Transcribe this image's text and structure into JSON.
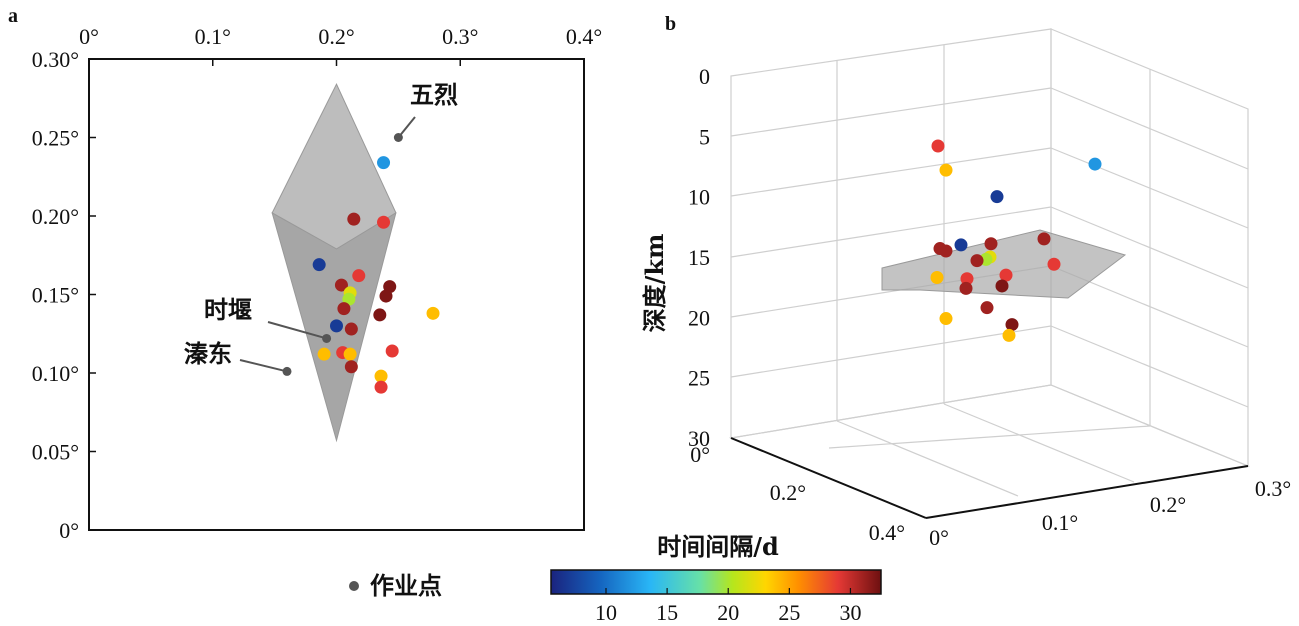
{
  "chart_data": [
    {
      "panel": "a",
      "type": "scatter",
      "x_ticks": [
        "0°",
        "0.1°",
        "0.2°",
        "0.3°",
        "0.4°"
      ],
      "y_ticks": [
        "0°",
        "0.05°",
        "0.10°",
        "0.15°",
        "0.20°",
        "0.25°",
        "0.30°"
      ],
      "xlim": [
        0,
        0.4
      ],
      "ylim": [
        0,
        0.3
      ],
      "sites": [
        {
          "name": "五烈",
          "x": 0.25,
          "y": 0.25
        },
        {
          "name": "时堰",
          "x": 0.192,
          "y": 0.122
        },
        {
          "name": "溱东",
          "x": 0.16,
          "y": 0.101
        }
      ],
      "hull": [
        [
          0.2,
          0.179
        ],
        [
          0.248,
          0.202
        ],
        [
          0.2,
          0.284
        ],
        [
          0.148,
          0.202
        ]
      ],
      "hull_lower": [
        [
          0.148,
          0.202
        ],
        [
          0.248,
          0.202
        ],
        [
          0.2,
          0.057
        ]
      ],
      "points": [
        {
          "x": 0.238,
          "y": 0.234,
          "d": 12
        },
        {
          "x": 0.214,
          "y": 0.198,
          "d": 31
        },
        {
          "x": 0.238,
          "y": 0.196,
          "d": 29
        },
        {
          "x": 0.186,
          "y": 0.169,
          "d": 7
        },
        {
          "x": 0.218,
          "y": 0.162,
          "d": 29
        },
        {
          "x": 0.204,
          "y": 0.156,
          "d": 31
        },
        {
          "x": 0.243,
          "y": 0.155,
          "d": 32
        },
        {
          "x": 0.211,
          "y": 0.151,
          "d": 22
        },
        {
          "x": 0.21,
          "y": 0.147,
          "d": 20
        },
        {
          "x": 0.24,
          "y": 0.149,
          "d": 32
        },
        {
          "x": 0.206,
          "y": 0.141,
          "d": 31
        },
        {
          "x": 0.235,
          "y": 0.137,
          "d": 32
        },
        {
          "x": 0.278,
          "y": 0.138,
          "d": 24
        },
        {
          "x": 0.2,
          "y": 0.13,
          "d": 7
        },
        {
          "x": 0.212,
          "y": 0.128,
          "d": 31
        },
        {
          "x": 0.245,
          "y": 0.114,
          "d": 29
        },
        {
          "x": 0.19,
          "y": 0.112,
          "d": 24
        },
        {
          "x": 0.205,
          "y": 0.113,
          "d": 29
        },
        {
          "x": 0.211,
          "y": 0.112,
          "d": 24
        },
        {
          "x": 0.212,
          "y": 0.104,
          "d": 31
        },
        {
          "x": 0.236,
          "y": 0.098,
          "d": 24
        },
        {
          "x": 0.236,
          "y": 0.091,
          "d": 29
        }
      ]
    },
    {
      "panel": "b",
      "type": "scatter3d",
      "ylabel": "深度/km",
      "z_ticks": [
        "0",
        "5",
        "10",
        "15",
        "20",
        "25",
        "30"
      ],
      "x_ticks": [
        "0°",
        "0.1°",
        "0.2°",
        "0.3°"
      ],
      "y_ticks": [
        "0°",
        "0.2°",
        "0.4°"
      ],
      "zlim": [
        0,
        30
      ],
      "points": [
        {
          "depth": 5.8,
          "d": 29,
          "col": 938
        },
        {
          "depth": 7.8,
          "d": 24,
          "col": 946
        },
        {
          "depth": 7.3,
          "d": 12,
          "col": 1095
        },
        {
          "depth": 10.0,
          "d": 7,
          "col": 997
        },
        {
          "depth": 13.5,
          "d": 31,
          "col": 1044
        },
        {
          "depth": 14.0,
          "d": 7,
          "col": 961
        },
        {
          "depth": 13.9,
          "d": 31,
          "col": 991
        },
        {
          "depth": 14.3,
          "d": 31,
          "col": 940
        },
        {
          "depth": 14.5,
          "d": 31,
          "col": 946
        },
        {
          "depth": 15.0,
          "d": 22,
          "col": 990
        },
        {
          "depth": 15.2,
          "d": 20,
          "col": 986
        },
        {
          "depth": 15.3,
          "d": 31,
          "col": 977
        },
        {
          "depth": 15.6,
          "d": 29,
          "col": 1054
        },
        {
          "depth": 16.5,
          "d": 29,
          "col": 1006
        },
        {
          "depth": 16.7,
          "d": 24,
          "col": 937
        },
        {
          "depth": 16.8,
          "d": 29,
          "col": 967
        },
        {
          "depth": 17.4,
          "d": 32,
          "col": 1002
        },
        {
          "depth": 17.6,
          "d": 31,
          "col": 966
        },
        {
          "depth": 19.2,
          "d": 31,
          "col": 987
        },
        {
          "depth": 20.1,
          "d": 24,
          "col": 946
        },
        {
          "depth": 20.6,
          "d": 32,
          "col": 1012
        },
        {
          "depth": 21.5,
          "d": 24,
          "col": 1009
        }
      ]
    }
  ],
  "colorbar": {
    "title": "时间间隔/d",
    "ticks": [
      "10",
      "15",
      "20",
      "25",
      "30"
    ],
    "range": [
      5.5,
      32.5
    ]
  },
  "legend": {
    "label": "作业点"
  },
  "labels": {
    "panel_a": "a",
    "panel_b": "b"
  }
}
